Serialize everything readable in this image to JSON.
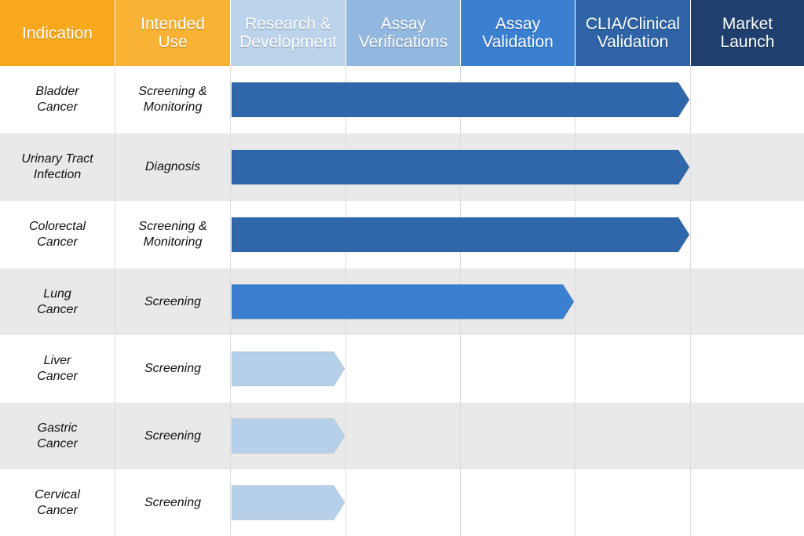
{
  "headers": [
    {
      "label": "Indication",
      "color": "#f7a81b"
    },
    {
      "label": "Intended\nUse",
      "color": "#f9b233"
    },
    {
      "label": "Research &\nDevelopment",
      "color": "#bcd3ec"
    },
    {
      "label": "Assay\nVerifications",
      "color": "#93b8e0"
    },
    {
      "label": "Assay\nValidation",
      "color": "#3a7fd0"
    },
    {
      "label": "CLIA/Clinical\nValidation",
      "color": "#2e64a6"
    },
    {
      "label": "Market\nLaunch",
      "color": "#1f3f6e"
    }
  ],
  "rows": [
    {
      "indication": "Bladder\nCancer",
      "use": "Screening &\nMonitoring",
      "stage_reached": "CLIA/Clinical Validation",
      "bar_color": "#2f67aa"
    },
    {
      "indication": "Urinary Tract\nInfection",
      "use": "Diagnosis",
      "stage_reached": "CLIA/Clinical Validation",
      "bar_color": "#2f67aa"
    },
    {
      "indication": "Colorectal\nCancer",
      "use": "Screening &\nMonitoring",
      "stage_reached": "CLIA/Clinical Validation",
      "bar_color": "#2f67aa"
    },
    {
      "indication": "Lung\nCancer",
      "use": "Screening",
      "stage_reached": "Assay Validation",
      "bar_color": "#3a7fd0"
    },
    {
      "indication": "Liver\nCancer",
      "use": "Screening",
      "stage_reached": "Research & Development",
      "bar_color": "#b7d0ea"
    },
    {
      "indication": "Gastric\nCancer",
      "use": "Screening",
      "stage_reached": "Research & Development",
      "bar_color": "#b7d0ea"
    },
    {
      "indication": "Cervical\nCancer",
      "use": "Screening",
      "stage_reached": "Research & Development",
      "bar_color": "#b7d0ea"
    }
  ]
}
